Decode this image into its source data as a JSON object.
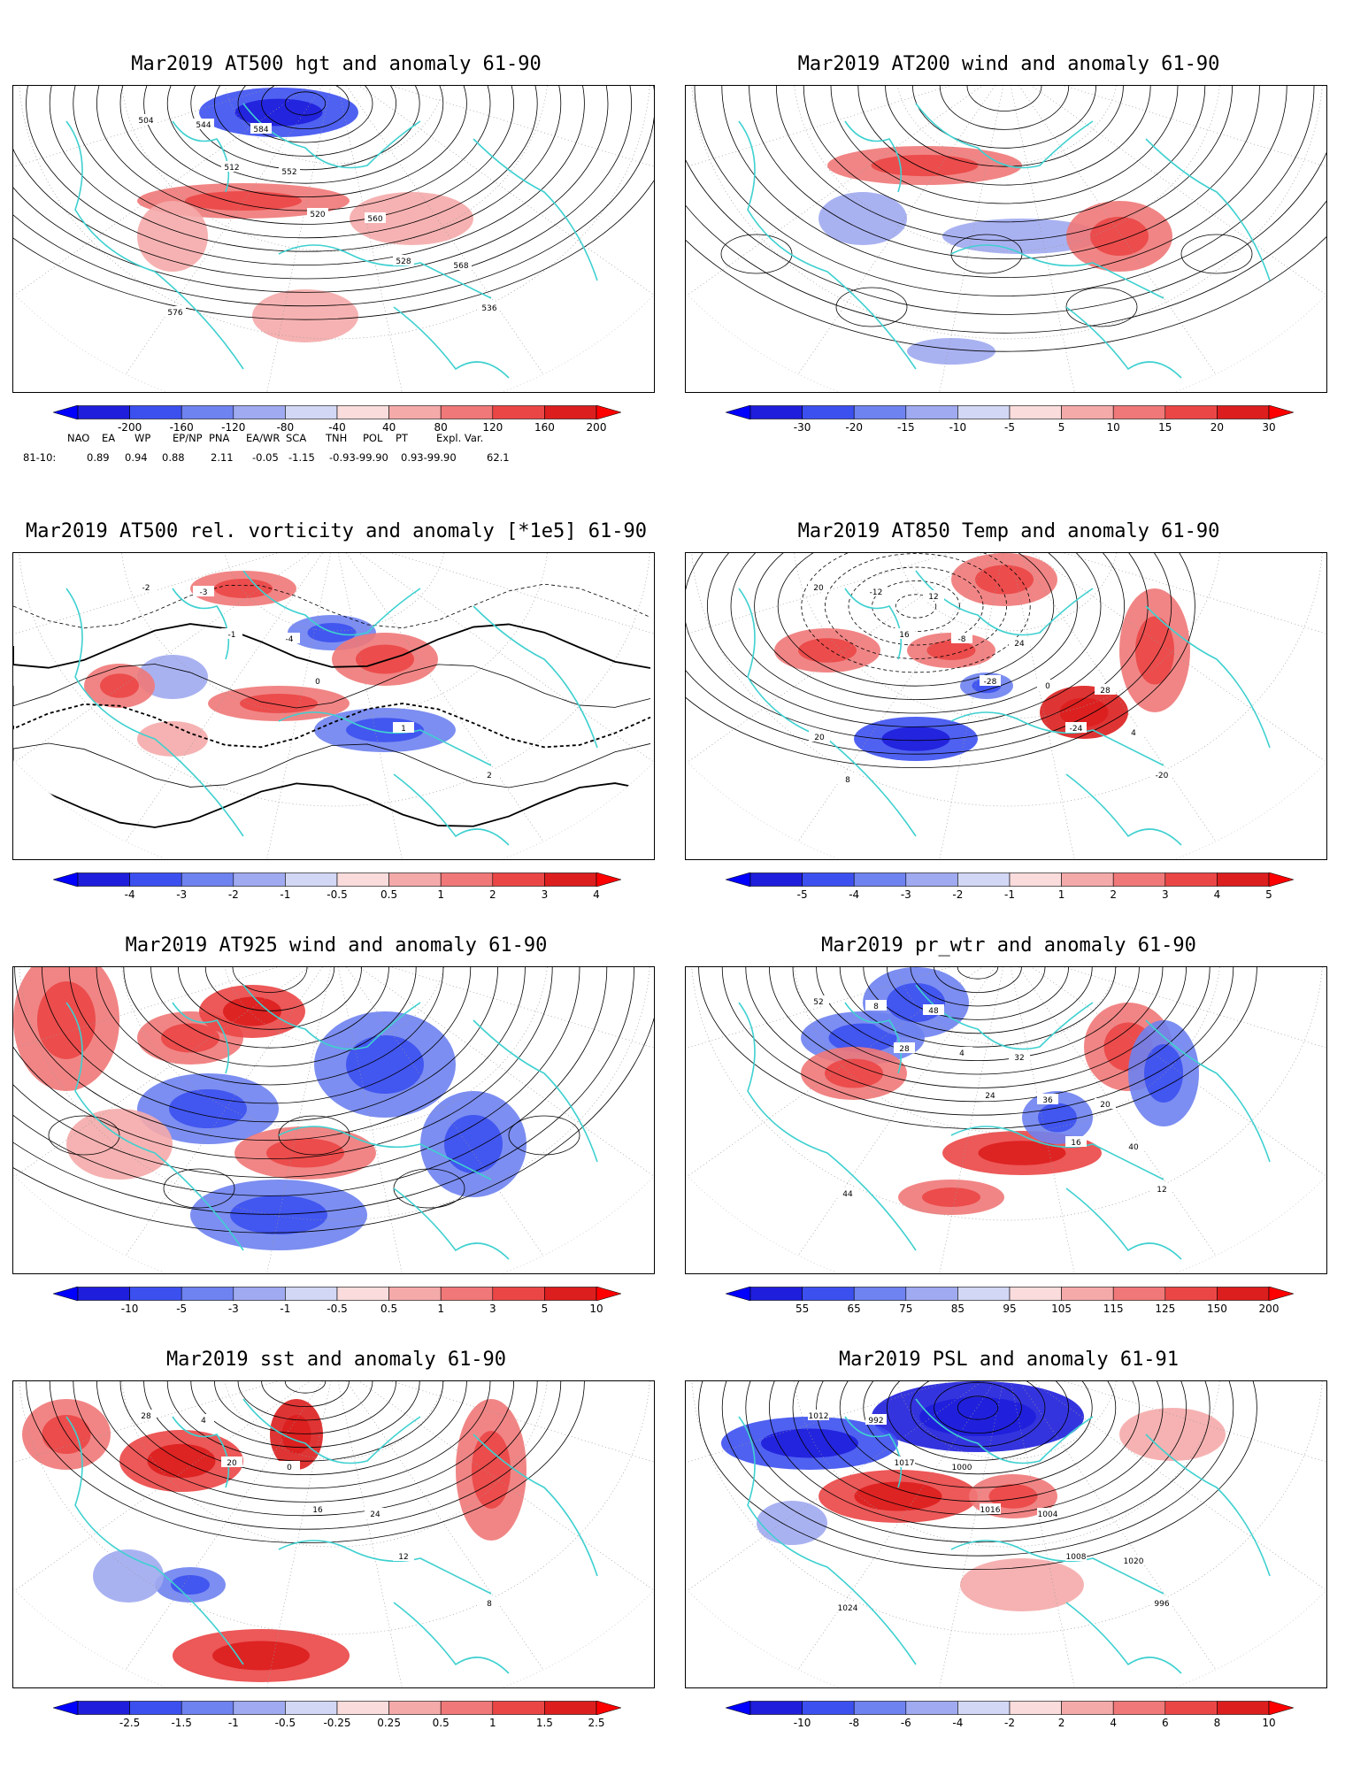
{
  "panels": [
    {
      "title": "Mar2019 AT500 hgt and anomaly 61-90",
      "contour_labels": [
        "504",
        "512",
        "520",
        "528",
        "536",
        "544",
        "552",
        "560",
        "568",
        "576",
        "584"
      ],
      "colorbar": [
        "-200",
        "-160",
        "-120",
        "-80",
        "-40",
        "40",
        "80",
        "120",
        "160",
        "200"
      ]
    },
    {
      "title": "Mar2019 AT200 wind and anomaly 61-90",
      "contour_labels": [],
      "colorbar": [
        "-30",
        "-20",
        "-15",
        "-10",
        "-5",
        "5",
        "10",
        "15",
        "20",
        "30"
      ]
    },
    {
      "title": "Mar2019 AT500 rel. vorticity and anomaly [*1e5] 61-90",
      "contour_labels": [
        "-2",
        "-1",
        "0",
        "1",
        "2",
        "-3",
        "-4"
      ],
      "colorbar": [
        "-4",
        "-3",
        "-2",
        "-1",
        "-0.5",
        "0.5",
        "1",
        "2",
        "3",
        "4"
      ]
    },
    {
      "title": "Mar2019 AT850 Temp and anomaly 61-90",
      "contour_labels": [
        "20",
        "16",
        "-28",
        "-24",
        "-20",
        "-12",
        "-8",
        "0",
        "4",
        "8",
        "12",
        "24",
        "28",
        "20"
      ],
      "colorbar": [
        "-5",
        "-4",
        "-3",
        "-2",
        "-1",
        "1",
        "2",
        "3",
        "4",
        "5"
      ]
    },
    {
      "title": "Mar2019 AT925 wind and anomaly 61-90",
      "contour_labels": [],
      "colorbar": [
        "-10",
        "-5",
        "-3",
        "-1",
        "-0.5",
        "0.5",
        "1",
        "3",
        "5",
        "10"
      ]
    },
    {
      "title": "Mar2019 pr_wtr and anomaly 61-90",
      "contour_labels": [
        "52",
        "28",
        "24",
        "16",
        "12",
        "8",
        "4",
        "36",
        "40",
        "44",
        "48",
        "32",
        "20"
      ],
      "colorbar": [
        "55",
        "65",
        "75",
        "85",
        "95",
        "105",
        "115",
        "125",
        "150",
        "200"
      ]
    },
    {
      "title": "Mar2019 sst and anomaly 61-90",
      "contour_labels": [
        "28",
        "20",
        "16",
        "12",
        "8",
        "4",
        "0",
        "24"
      ],
      "colorbar": [
        "-2.5",
        "-1.5",
        "-1",
        "-0.5",
        "-0.25",
        "0.25",
        "0.5",
        "1",
        "1.5",
        "2.5"
      ]
    },
    {
      "title": "Mar2019 PSL and anomaly 61-91",
      "contour_labels": [
        "1012",
        "1017",
        "1016",
        "1008",
        "996",
        "992",
        "1000",
        "1004",
        "1020",
        "1024"
      ],
      "colorbar": [
        "-10",
        "-8",
        "-6",
        "-4",
        "-2",
        "2",
        "4",
        "6",
        "8",
        "10"
      ]
    }
  ],
  "teleconnections": {
    "headers": [
      "NAO",
      "EA",
      "WP",
      "EP/NP",
      "PNA",
      "EA/WR",
      "SCA",
      "TNH",
      "POL",
      "PT",
      "Expl. Var."
    ],
    "row_label": "81-10:",
    "values": [
      "0.89",
      "0.94",
      "0.88",
      "2.11",
      "-0.05",
      "-1.15",
      "-0.93-99.90",
      "0.93-99.90",
      "62.1"
    ]
  },
  "colors": {
    "blue_scale": [
      "#1e1edc",
      "#3c50f0",
      "#6e82f0",
      "#a0aaf0",
      "#d2d7f5"
    ],
    "red_scale": [
      "#fadcdc",
      "#f5aaaa",
      "#f07878",
      "#eb4646",
      "#dc1e1e"
    ],
    "coast": "#3fd0d0",
    "contour": "#000000"
  }
}
